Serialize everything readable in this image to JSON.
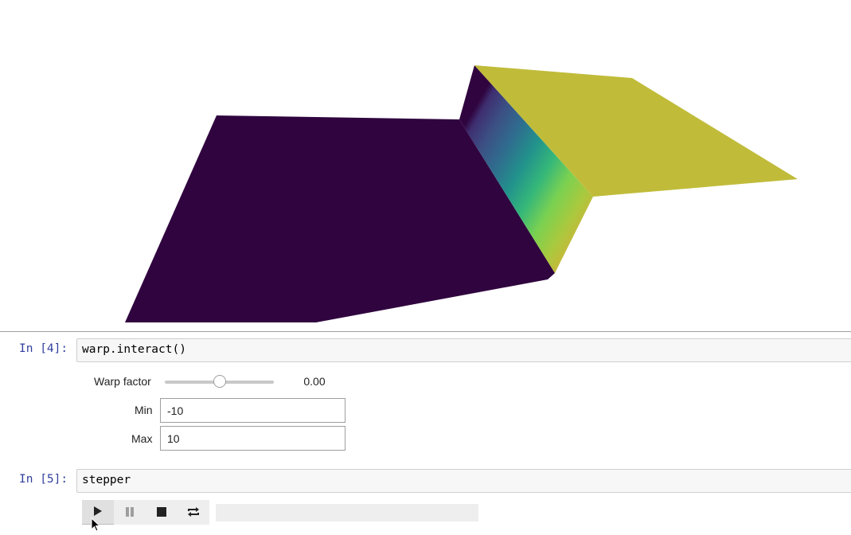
{
  "cells": [
    {
      "prompt": "In [4]:",
      "code": "warp.interact()"
    },
    {
      "prompt": "In [5]:",
      "code": "stepper"
    }
  ],
  "warp_widget": {
    "slider_label": "Warp factor",
    "slider_value_text": "0.00",
    "slider_fraction": 0.5,
    "min_label": "Min",
    "min_value": "-10",
    "max_label": "Max",
    "max_value": "10"
  },
  "player": {
    "buttons": [
      {
        "name": "play",
        "icon": "play-icon"
      },
      {
        "name": "pause",
        "icon": "pause-icon"
      },
      {
        "name": "stop",
        "icon": "stop-icon"
      },
      {
        "name": "loop",
        "icon": "repeat-icon"
      }
    ],
    "progress_fraction": 0
  },
  "render_output": {
    "surface_type": "warped step surface",
    "colormap": "viridis",
    "low_color": "#30053f",
    "high_color": "#c0bc3a"
  }
}
